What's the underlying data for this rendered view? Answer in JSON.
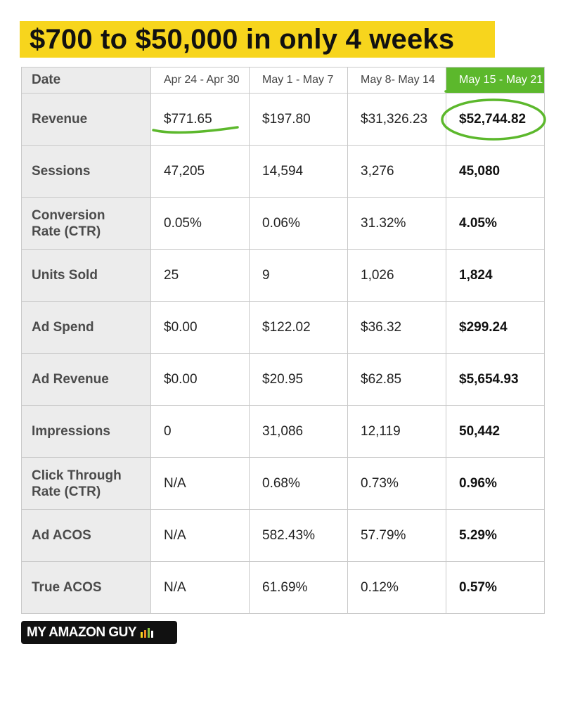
{
  "headline": "$700 to $50,000 in only 4 weeks",
  "table": {
    "header_label": "Date",
    "columns": [
      "Apr 24 - Apr 30",
      "May 1 - May 7",
      "May 8- May 14",
      "May 15 - May 21"
    ],
    "rows": [
      {
        "label": "Revenue",
        "values": [
          "$771.65",
          "$197.80",
          "$31,326.23",
          "$52,744.82"
        ]
      },
      {
        "label": "Sessions",
        "values": [
          "47,205",
          "14,594",
          "3,276",
          "45,080"
        ]
      },
      {
        "label": "Conversion Rate (CTR)",
        "values": [
          "0.05%",
          "0.06%",
          "31.32%",
          "4.05%"
        ]
      },
      {
        "label": "Units Sold",
        "values": [
          "25",
          "9",
          "1,026",
          "1,824"
        ]
      },
      {
        "label": "Ad Spend",
        "values": [
          "$0.00",
          "$122.02",
          "$36.32",
          "$299.24"
        ]
      },
      {
        "label": "Ad Revenue",
        "values": [
          "$0.00",
          "$20.95",
          "$62.85",
          "$5,654.93"
        ]
      },
      {
        "label": "Impressions",
        "values": [
          "0",
          "31,086",
          "12,119",
          "50,442"
        ]
      },
      {
        "label": "Click Through Rate (CTR)",
        "values": [
          "N/A",
          "0.68%",
          "0.73%",
          "0.96%"
        ]
      },
      {
        "label": "Ad ACOS",
        "values": [
          "N/A",
          "582.43%",
          "57.79%",
          "5.29%"
        ]
      },
      {
        "label": "True ACOS",
        "values": [
          "N/A",
          "61.69%",
          "0.12%",
          "0.57%"
        ]
      }
    ]
  },
  "logo": {
    "text": "MY AMAZON GUY",
    "bar_colors": [
      "#f7d51d",
      "#f08a24",
      "#8ec641",
      "#ffffff"
    ]
  },
  "colors": {
    "headline_bg": "#f7d51d",
    "highlight_column": "#5cb82c",
    "annotation_marker": "#5cb82c",
    "label_column_bg": "#ececec"
  }
}
